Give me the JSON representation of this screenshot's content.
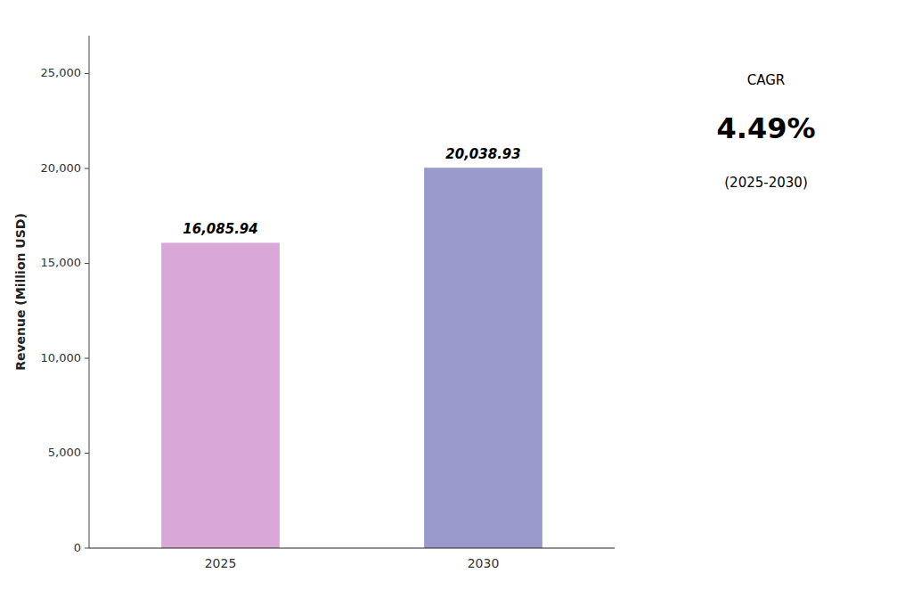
{
  "chart_data": {
    "type": "bar",
    "categories": [
      "2025",
      "2030"
    ],
    "values": [
      16085.94,
      20038.93
    ],
    "value_labels": [
      "16,085.94",
      "20,038.93"
    ],
    "colors": [
      "#d9a8d9",
      "#9999cc"
    ],
    "ylabel": "Revenue (Million USD)",
    "ylim": [
      0,
      27000
    ],
    "yticks": [
      0,
      {
        "value": 5000,
        "label": "5,000"
      },
      {
        "value": 10000,
        "label": "10,000"
      },
      {
        "value": 15000,
        "label": "15,000"
      },
      {
        "value": 20000,
        "label": "20,000"
      },
      {
        "value": 25000,
        "label": "25,000"
      }
    ],
    "grid": false,
    "data_labels": true,
    "annotations": [
      "CAGR",
      "4.49%",
      "(2025-2030)"
    ]
  }
}
